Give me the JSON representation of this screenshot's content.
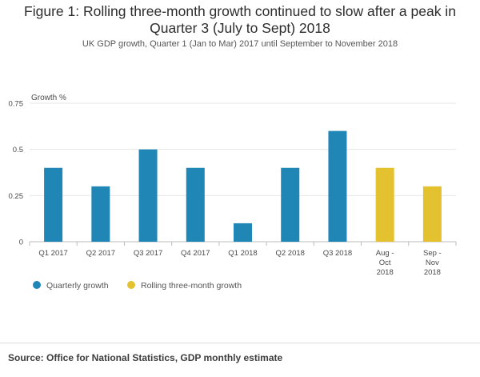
{
  "header": {
    "title_line1": "Figure 1: Rolling three-month growth continued to slow after a peak in",
    "title_line2": "Quarter 3 (July to Sept) 2018",
    "subtitle": "UK GDP growth, Quarter 1 (Jan to Mar) 2017 until September to November 2018"
  },
  "chart_data": {
    "type": "bar",
    "title": "Figure 1: Rolling three-month growth continued to slow after a peak in Quarter 3 (July to Sept) 2018",
    "subtitle": "UK GDP growth, Quarter 1 (Jan to Mar) 2017 until September to November 2018",
    "ylabel": "Growth %",
    "ylim": [
      0,
      0.75
    ],
    "yticks": [
      "0",
      "0.25",
      "0.5",
      "0.75"
    ],
    "ytick_values": [
      0,
      0.25,
      0.5,
      0.75
    ],
    "grid": true,
    "legend_position": "bottom-left",
    "categories": [
      [
        "Q1 2017"
      ],
      [
        "Q2 2017"
      ],
      [
        "Q3 2017"
      ],
      [
        "Q4 2017"
      ],
      [
        "Q1 2018"
      ],
      [
        "Q2 2018"
      ],
      [
        "Q3 2018"
      ],
      [
        "Aug -",
        "Oct",
        "2018"
      ],
      [
        "Sep -",
        "Nov",
        "2018"
      ]
    ],
    "series": [
      {
        "name": "Quarterly growth",
        "color": "#1f86b5",
        "values": [
          0.4,
          0.3,
          0.5,
          0.4,
          0.1,
          0.4,
          0.6,
          null,
          null
        ]
      },
      {
        "name": "Rolling three-month growth",
        "color": "#e4c12f",
        "values": [
          null,
          null,
          null,
          null,
          null,
          null,
          null,
          0.4,
          0.3
        ]
      }
    ]
  },
  "source": "Source: Office for National Statistics, GDP monthly estimate"
}
